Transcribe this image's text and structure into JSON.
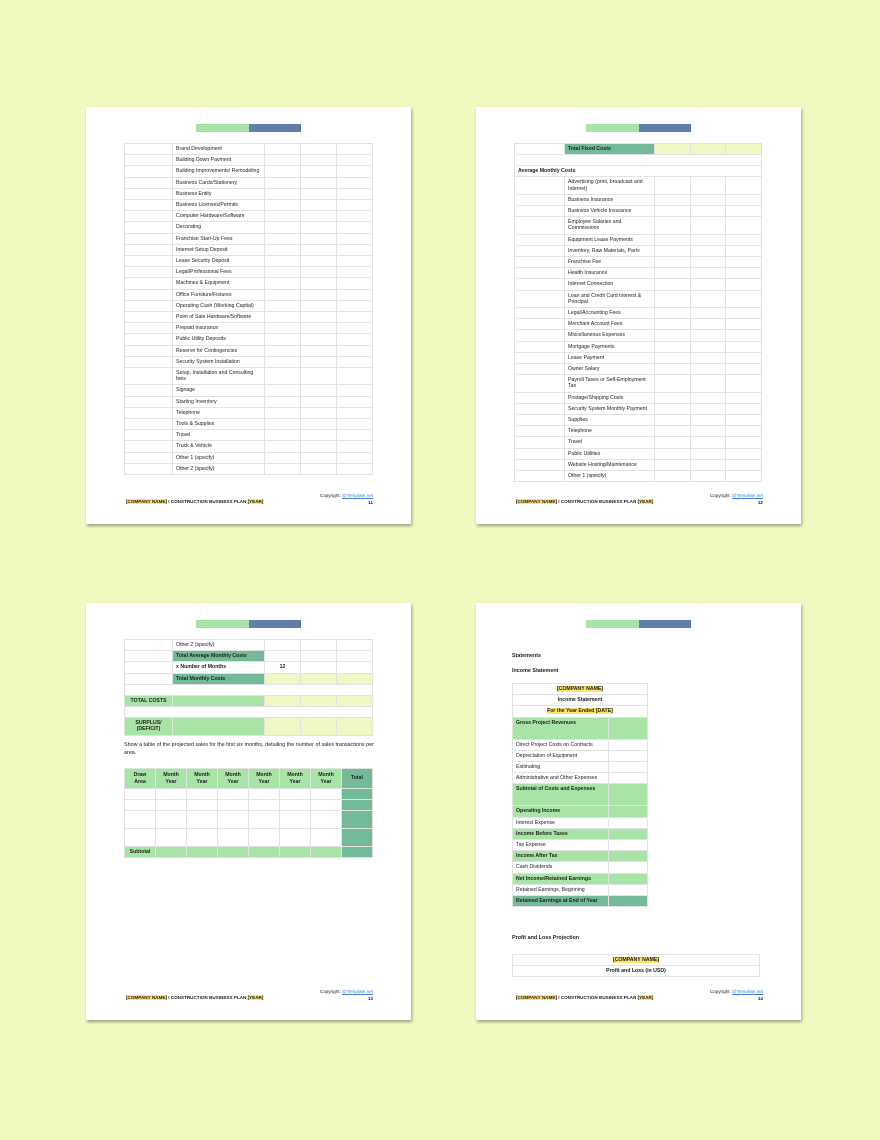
{
  "colors": {
    "background": "#eefac0",
    "green": "#a8e4a6",
    "dark_green": "#73bb98",
    "blue": "#5d7fa6",
    "yellow": "#f0f7c3",
    "highlight": "#fde36b"
  },
  "footer": {
    "company": "[COMPANY NAME]",
    "separator": " I CONSTRUCTION BUSINESS PLAN ",
    "year": "[YEAR]",
    "copyright_label": "Copyright: ",
    "copyright_link": "@Template.net"
  },
  "page11": {
    "number": "11",
    "items": [
      "Brand Development",
      "Building Down Payment",
      "Building Improvements/ Remodeling",
      "Business Cards/Stationery",
      "Business Entity",
      "Business Licenses/Permits",
      "Computer Hardware/Software",
      "Decorating",
      "Franchise Start-Up Fees",
      "Internet Setup Deposit",
      "Lease Security Deposit",
      "Legal/Professional Fees",
      "Machines & Equipment",
      "Office Furniture/Fixtures",
      "Operating Cash (Working Capital)",
      "Point of Sale Hardware/Software",
      "Prepaid Insurance",
      "Public Utility Deposits",
      "Reserve for Contingencies",
      "Security System Installation",
      "Setup, Installation and Consulting fees",
      "Signage",
      "Starting Inventory",
      "Telephone",
      "Tools & Supplies",
      "Travel",
      "Truck & Vehicle",
      "Other 1 (specify)",
      "Other 2 (specify)"
    ]
  },
  "page12": {
    "number": "12",
    "total_fixed": "Total Fixed Costs",
    "section": "Average Monthly Costs",
    "items": [
      "Advertising (print, broadcast and Internet)",
      "Business Insurance",
      "Business Vehicle Insurance",
      "Employee Salaries and Commissions",
      "Equipment Lease Payments",
      "Inventory, Raw Materials, Parts",
      "Franchise Fee",
      "Health Insurance",
      "Internet Connection",
      "Loan and Credit Card Interest & Principal",
      "Legal/Accounting Fees",
      "Merchant Account Fees",
      "Miscellaneous Expenses",
      "Mortgage Payments",
      "Lease Payment",
      "Owner Salary",
      "Payroll Taxes or Self-Employment Tax",
      "Postage/Shipping Costs",
      "Security System Monthly Payment",
      "Supplies",
      "Telephone",
      "Travel",
      "Public Utilities",
      "Website Hosting/Maintenance",
      "Other 1 (specify)"
    ]
  },
  "page13": {
    "number": "13",
    "other2": "Other 2 (specify)",
    "total_avg": "Total Average Monthly Costs",
    "x_months": "x Number of Months",
    "months_value": "12",
    "total_monthly": "Total Monthly Costs",
    "total_costs": "TOTAL COSTS",
    "surplus": "SURPLUS/ (DEFICIT)",
    "paragraph": "Show a table of the projected sales for the first six months, detailing the number of sales transactions per area.",
    "sales_headers": [
      "Draw Area",
      "Month Year",
      "Month Year",
      "Month Year",
      "Month Year",
      "Month Year",
      "Month Year",
      "Total"
    ],
    "subtotal": "Subtotal"
  },
  "page14": {
    "number": "14",
    "statements": "Statements",
    "income_heading": "Income Statement",
    "company": "[COMPANY NAME]",
    "is_title": "Income Statement",
    "period": "For the Year Ended [DATE]",
    "rows": [
      [
        "Gross Project Revenues",
        "lg2"
      ],
      [
        "Direct Project Costs on Contracts",
        ""
      ],
      [
        "Depreciation of Equipment",
        ""
      ],
      [
        "Estimating",
        ""
      ],
      [
        "Administrative and Other Expenses",
        ""
      ],
      [
        "Subtotal of Costs and Expenses",
        "lg2"
      ],
      [
        "Operating Income",
        "lg"
      ],
      [
        "Interest Expense",
        ""
      ],
      [
        "Income Before Taxes",
        "lg"
      ],
      [
        "Tax Expense",
        ""
      ],
      [
        "Income After Tax",
        "lg"
      ],
      [
        "Cash Dividends",
        ""
      ],
      [
        "Net Income/Retained Earnings",
        "lg"
      ],
      [
        "Retained Earnings, Beginning",
        ""
      ],
      [
        "Retained Earnings at End of Year",
        "dk"
      ]
    ],
    "pl_heading": "Profit and Loss Projection",
    "pl_company": "[COMPANY NAME]",
    "pl_title": "Profit and Loss (in USD)"
  }
}
